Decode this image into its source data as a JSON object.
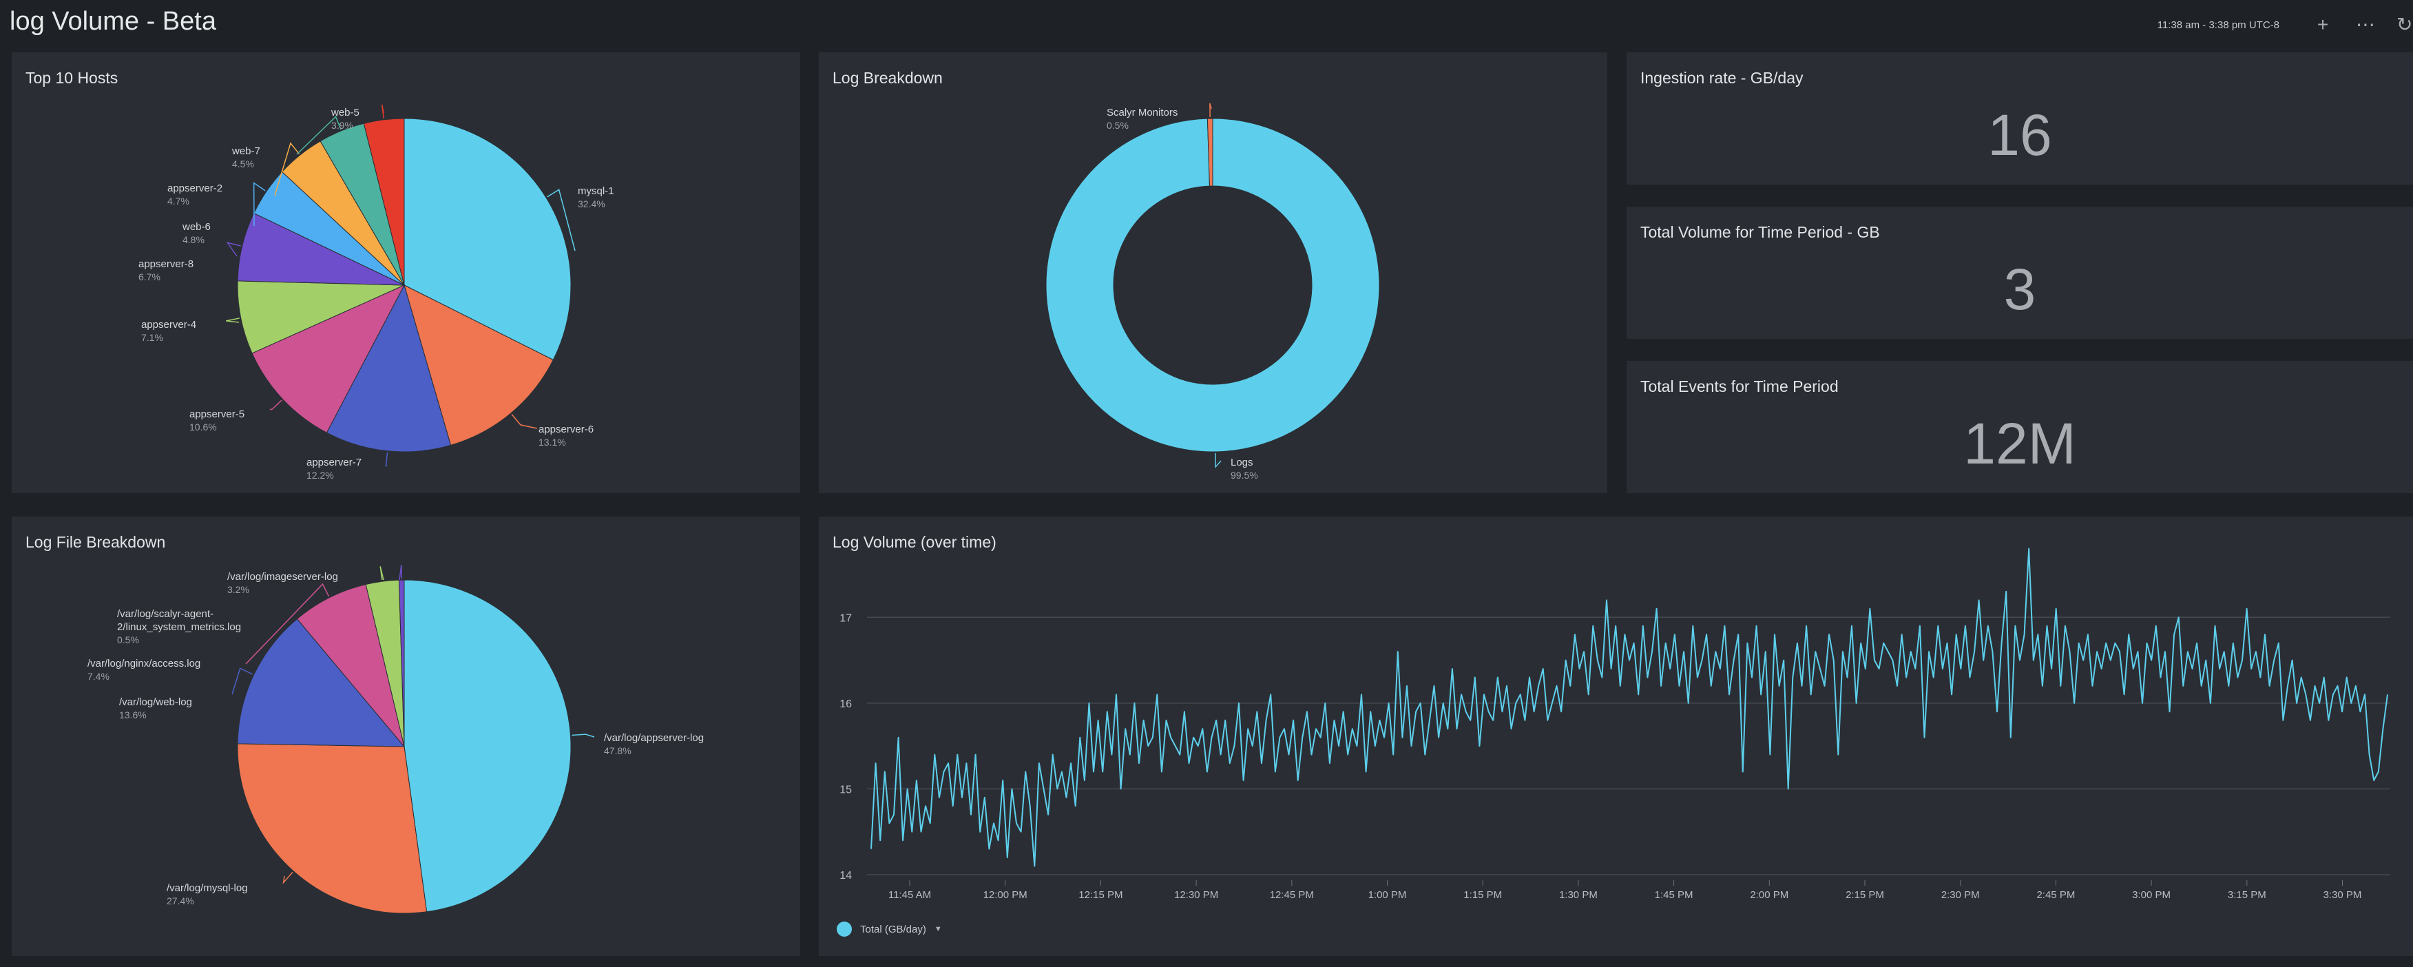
{
  "header": {
    "title": "log Volume - Beta",
    "time_range": "11:38 am - 3:38 pm UTC-8",
    "icons": [
      "plus-icon",
      "more-icon",
      "refresh-icon"
    ]
  },
  "panels": {
    "top_hosts": {
      "title": "Top 10 Hosts"
    },
    "log_breakdown": {
      "title": "Log Breakdown"
    },
    "ingestion_rate": {
      "title": "Ingestion rate - GB/day",
      "value": "16"
    },
    "total_volume": {
      "title": "Total Volume for Time Period - GB",
      "value": "3"
    },
    "total_events": {
      "title": "Total Events for Time Period",
      "value": "12M"
    },
    "log_file_breakdown": {
      "title": "Log File Breakdown"
    },
    "log_volume": {
      "title": "Log Volume (over time)",
      "legend_label": "Total (GB/day)"
    }
  },
  "colors": {
    "cyan": "#5dcfec",
    "background": "#1e2126",
    "panel": "#2a2e34"
  },
  "chart_data": [
    {
      "id": "top_hosts",
      "type": "pie",
      "slices": [
        {
          "label": "mysql-1",
          "value": 32.4,
          "pct": "32.4%",
          "color": "#5dcfec"
        },
        {
          "label": "appserver-6",
          "value": 13.1,
          "pct": "13.1%",
          "color": "#ef7650"
        },
        {
          "label": "appserver-7",
          "value": 12.2,
          "pct": "12.2%",
          "color": "#4c5fc6"
        },
        {
          "label": "appserver-5",
          "value": 10.6,
          "pct": "10.6%",
          "color": "#ce5393"
        },
        {
          "label": "appserver-4",
          "value": 7.1,
          "pct": "7.1%",
          "color": "#a3cf68"
        },
        {
          "label": "appserver-8",
          "value": 6.7,
          "pct": "6.7%",
          "color": "#6f4ecb"
        },
        {
          "label": "web-6",
          "value": 4.8,
          "pct": "4.8%",
          "color": "#4eaef1"
        },
        {
          "label": "appserver-2",
          "value": 4.7,
          "pct": "4.7%",
          "color": "#f6ab46"
        },
        {
          "label": "web-7",
          "value": 4.5,
          "pct": "4.5%",
          "color": "#4db3a0"
        },
        {
          "label": "web-5",
          "value": 3.9,
          "pct": "3.9%",
          "color": "#e53b2d"
        }
      ]
    },
    {
      "id": "log_breakdown",
      "type": "pie",
      "donut": true,
      "slices": [
        {
          "label": "Logs",
          "value": 99.5,
          "pct": "99.5%",
          "color": "#5dcfec"
        },
        {
          "label": "Scalyr Monitors",
          "value": 0.5,
          "pct": "0.5%",
          "color": "#ef7650"
        }
      ]
    },
    {
      "id": "log_file_breakdown",
      "type": "pie",
      "slices": [
        {
          "label": "/var/log/appserver-log",
          "value": 47.8,
          "pct": "47.8%",
          "color": "#5dcfec"
        },
        {
          "label": "/var/log/mysql-log",
          "value": 27.4,
          "pct": "27.4%",
          "color": "#ef7650"
        },
        {
          "label": "/var/log/web-log",
          "value": 13.6,
          "pct": "13.6%",
          "color": "#4c5fc6"
        },
        {
          "label": "/var/log/nginx/access.log",
          "value": 7.4,
          "pct": "7.4%",
          "color": "#ce5393"
        },
        {
          "label": "/var/log/imageserver-log",
          "value": 3.2,
          "pct": "3.2%",
          "color": "#a3cf68"
        },
        {
          "label": "/var/log/scalyr-agent-2/linux_system_metrics.log",
          "value": 0.5,
          "pct": "0.5%",
          "color": "#6f4ecb"
        }
      ]
    },
    {
      "id": "log_volume",
      "type": "line",
      "x_ticks": [
        "11:45 AM",
        "12:00 PM",
        "12:15 PM",
        "12:30 PM",
        "12:45 PM",
        "1:00 PM",
        "1:15 PM",
        "1:30 PM",
        "1:45 PM",
        "2:00 PM",
        "2:15 PM",
        "2:30 PM",
        "2:45 PM",
        "3:00 PM",
        "3:15 PM",
        "3:30 PM"
      ],
      "y_ticks": [
        14,
        15,
        16,
        17
      ],
      "ylim": [
        14,
        17.5
      ],
      "grid": true,
      "series": [
        {
          "name": "Total (GB/day)",
          "color": "#5dcfec",
          "values": [
            14.3,
            15.3,
            14.4,
            15.2,
            14.6,
            14.7,
            15.6,
            14.4,
            15.0,
            14.5,
            15.1,
            14.5,
            14.8,
            14.6,
            15.4,
            14.9,
            15.2,
            15.3,
            14.8,
            15.4,
            14.9,
            15.3,
            14.7,
            15.4,
            14.5,
            14.9,
            14.3,
            14.6,
            14.4,
            15.1,
            14.2,
            15.0,
            14.6,
            14.5,
            15.2,
            14.8,
            14.1,
            15.3,
            15.0,
            14.7,
            15.4,
            15.0,
            15.2,
            14.9,
            15.3,
            14.8,
            15.6,
            15.1,
            16.0,
            15.2,
            15.8,
            15.2,
            15.9,
            15.4,
            16.1,
            15.0,
            15.7,
            15.4,
            16.0,
            15.3,
            15.8,
            15.5,
            15.6,
            16.1,
            15.2,
            15.8,
            15.6,
            15.5,
            15.4,
            15.9,
            15.3,
            15.6,
            15.5,
            15.7,
            15.2,
            15.6,
            15.8,
            15.4,
            15.8,
            15.3,
            15.5,
            16.0,
            15.1,
            15.7,
            15.5,
            15.9,
            15.3,
            15.8,
            16.1,
            15.2,
            15.6,
            15.7,
            15.4,
            15.8,
            15.1,
            15.6,
            15.9,
            15.4,
            15.7,
            15.6,
            16.0,
            15.3,
            15.8,
            15.5,
            15.9,
            15.4,
            15.7,
            15.5,
            16.1,
            15.2,
            15.9,
            15.5,
            15.8,
            15.6,
            16.0,
            15.4,
            16.6,
            15.6,
            16.2,
            15.5,
            15.9,
            16.0,
            15.4,
            15.8,
            16.2,
            15.6,
            16.0,
            15.7,
            16.4,
            15.7,
            16.1,
            15.9,
            15.8,
            16.3,
            15.5,
            16.1,
            15.9,
            15.8,
            16.3,
            15.9,
            16.2,
            15.7,
            16.0,
            16.1,
            15.8,
            16.3,
            15.9,
            16.2,
            16.4,
            15.8,
            16.0,
            16.2,
            15.9,
            16.5,
            16.2,
            16.8,
            16.4,
            16.6,
            16.1,
            16.9,
            16.5,
            16.3,
            17.2,
            16.4,
            16.9,
            16.2,
            16.8,
            16.5,
            16.7,
            16.1,
            16.9,
            16.3,
            16.6,
            17.1,
            16.2,
            16.7,
            16.4,
            16.8,
            16.2,
            16.6,
            16.0,
            16.9,
            16.3,
            16.5,
            16.8,
            16.2,
            16.6,
            16.4,
            16.9,
            16.1,
            16.5,
            16.8,
            15.2,
            16.7,
            16.3,
            16.9,
            16.1,
            16.6,
            15.4,
            16.8,
            16.2,
            16.5,
            15.0,
            16.3,
            16.7,
            16.2,
            16.9,
            16.1,
            16.6,
            16.4,
            16.2,
            16.8,
            16.5,
            15.4,
            16.6,
            16.3,
            16.9,
            16.0,
            16.7,
            16.4,
            17.1,
            16.5,
            16.4,
            16.7,
            16.6,
            16.5,
            16.2,
            16.8,
            16.3,
            16.6,
            16.4,
            16.9,
            15.6,
            16.6,
            16.3,
            16.9,
            16.4,
            16.7,
            16.1,
            16.8,
            16.4,
            16.9,
            16.3,
            16.6,
            17.2,
            16.5,
            16.9,
            16.6,
            15.9,
            16.7,
            17.3,
            15.6,
            16.9,
            16.5,
            16.8,
            17.8,
            16.5,
            16.8,
            16.2,
            16.9,
            16.4,
            17.1,
            16.2,
            16.9,
            16.6,
            16.0,
            16.7,
            16.5,
            16.8,
            16.2,
            16.6,
            16.4,
            16.7,
            16.5,
            16.7,
            16.6,
            16.1,
            16.8,
            16.4,
            16.6,
            16.0,
            16.7,
            16.5,
            16.9,
            16.3,
            16.6,
            15.9,
            16.8,
            17.0,
            16.2,
            16.6,
            16.4,
            16.7,
            16.2,
            16.5,
            16.0,
            16.9,
            16.4,
            16.6,
            16.2,
            16.7,
            16.3,
            16.5,
            17.1,
            16.4,
            16.6,
            16.3,
            16.8,
            16.2,
            16.5,
            16.7,
            15.8,
            16.2,
            16.5,
            16.0,
            16.3,
            16.1,
            15.8,
            16.2,
            16.0,
            16.3,
            15.8,
            16.1,
            16.2,
            15.9,
            16.3,
            16.0,
            16.2,
            15.9,
            16.1,
            15.4,
            15.1,
            15.2,
            15.7,
            16.1
          ]
        }
      ]
    }
  ]
}
